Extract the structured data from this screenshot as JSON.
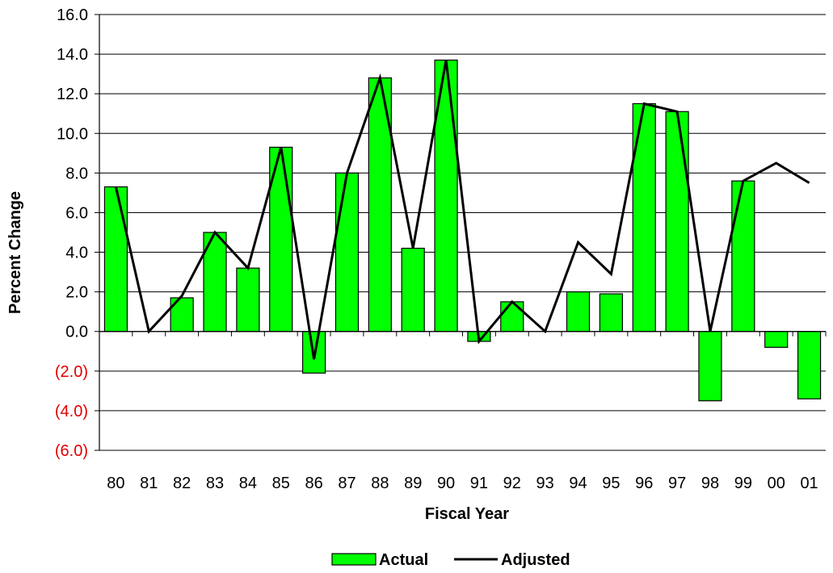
{
  "chart_data": {
    "type": "bar",
    "title": "",
    "xlabel": "Fiscal Year",
    "ylabel": "Percent Change",
    "ylim": [
      -6,
      16
    ],
    "y_ticks": [
      "16.0",
      "14.0",
      "12.0",
      "10.0",
      "8.0",
      "6.0",
      "4.0",
      "2.0",
      "0.0",
      "(2.0)",
      "(4.0)",
      "(6.0)"
    ],
    "y_tick_values": [
      16,
      14,
      12,
      10,
      8,
      6,
      4,
      2,
      0,
      -2,
      -4,
      -6
    ],
    "negative_tick_color": "#e00000",
    "grid": true,
    "legend_position": "bottom",
    "categories": [
      "80",
      "81",
      "82",
      "83",
      "84",
      "85",
      "86",
      "87",
      "88",
      "89",
      "90",
      "91",
      "92",
      "93",
      "94",
      "95",
      "96",
      "97",
      "98",
      "99",
      "00",
      "01"
    ],
    "series": [
      {
        "name": "Actual",
        "type": "bar",
        "color": "#00ff00",
        "values": [
          7.3,
          0.0,
          1.7,
          5.0,
          3.2,
          9.3,
          -2.1,
          8.0,
          12.8,
          4.2,
          13.7,
          -0.5,
          1.5,
          0.0,
          2.0,
          1.9,
          11.5,
          11.1,
          -3.5,
          7.6,
          -0.8,
          -3.4
        ]
      },
      {
        "name": "Adjusted",
        "type": "line",
        "color": "#000000",
        "values": [
          7.3,
          0.0,
          1.8,
          5.0,
          3.2,
          9.3,
          -1.4,
          8.0,
          12.8,
          4.2,
          13.7,
          -0.5,
          1.5,
          0.0,
          4.5,
          2.9,
          11.5,
          11.1,
          0.0,
          7.6,
          8.5,
          7.5
        ]
      }
    ]
  }
}
